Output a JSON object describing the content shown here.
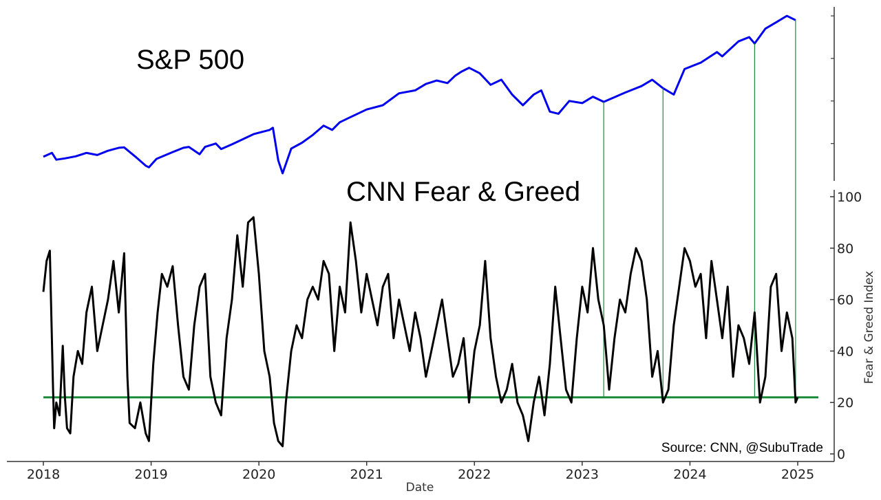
{
  "chart_data": [
    {
      "type": "line",
      "title": "S&P 500",
      "series": [
        {
          "name": "S&P 500",
          "color": "#0000ee",
          "x": [
            2018.0,
            2018.08,
            2018.12,
            2018.2,
            2018.3,
            2018.4,
            2018.5,
            2018.6,
            2018.7,
            2018.75,
            2018.85,
            2018.95,
            2018.98,
            2019.05,
            2019.2,
            2019.3,
            2019.35,
            2019.45,
            2019.5,
            2019.6,
            2019.65,
            2019.75,
            2019.85,
            2019.95,
            2020.1,
            2020.13,
            2020.18,
            2020.22,
            2020.3,
            2020.4,
            2020.5,
            2020.6,
            2020.68,
            2020.75,
            2020.85,
            2021.0,
            2021.15,
            2021.3,
            2021.45,
            2021.55,
            2021.65,
            2021.75,
            2021.82,
            2021.88,
            2021.95,
            2022.05,
            2022.15,
            2022.25,
            2022.35,
            2022.45,
            2022.55,
            2022.62,
            2022.7,
            2022.78,
            2022.88,
            2023.0,
            2023.1,
            2023.2,
            2023.4,
            2023.55,
            2023.65,
            2023.75,
            2023.85,
            2023.95,
            2024.1,
            2024.25,
            2024.3,
            2024.45,
            2024.55,
            2024.6,
            2024.7,
            2024.8,
            2024.9,
            2024.98
          ],
          "values": [
            2690,
            2780,
            2620,
            2650,
            2700,
            2780,
            2730,
            2830,
            2900,
            2910,
            2700,
            2480,
            2440,
            2640,
            2800,
            2900,
            2920,
            2750,
            2920,
            3000,
            2870,
            2980,
            3100,
            3220,
            3320,
            3370,
            2600,
            2300,
            2880,
            3020,
            3200,
            3420,
            3320,
            3500,
            3620,
            3800,
            3900,
            4180,
            4250,
            4400,
            4480,
            4420,
            4590,
            4690,
            4780,
            4650,
            4380,
            4500,
            4150,
            3900,
            4150,
            4250,
            3750,
            3700,
            4000,
            3950,
            4100,
            3980,
            4200,
            4350,
            4500,
            4300,
            4150,
            4750,
            4900,
            5150,
            5050,
            5400,
            5500,
            5350,
            5700,
            5850,
            6000,
            5900
          ]
        }
      ]
    },
    {
      "type": "line",
      "title": "CNN Fear & Greed",
      "xlabel": "Date",
      "ylabel": "Fear & Greed Index",
      "ylim": [
        0,
        100
      ],
      "yticks": [
        "0",
        "20",
        "40",
        "60",
        "80",
        "100"
      ],
      "xticks": [
        "2018",
        "2019",
        "2020",
        "2021",
        "2022",
        "2023",
        "2024",
        "2025"
      ],
      "series": [
        {
          "name": "Fear & Greed Index",
          "color": "#000000",
          "x": [
            2018.0,
            2018.03,
            2018.06,
            2018.09,
            2018.1,
            2018.12,
            2018.15,
            2018.18,
            2018.2,
            2018.22,
            2018.25,
            2018.28,
            2018.32,
            2018.36,
            2018.4,
            2018.45,
            2018.5,
            2018.55,
            2018.6,
            2018.65,
            2018.7,
            2018.75,
            2018.78,
            2018.8,
            2018.85,
            2018.9,
            2018.95,
            2018.98,
            2019.02,
            2019.06,
            2019.1,
            2019.15,
            2019.2,
            2019.25,
            2019.3,
            2019.35,
            2019.4,
            2019.45,
            2019.5,
            2019.55,
            2019.6,
            2019.65,
            2019.7,
            2019.75,
            2019.8,
            2019.85,
            2019.9,
            2019.95,
            2020.0,
            2020.05,
            2020.1,
            2020.14,
            2020.18,
            2020.22,
            2020.25,
            2020.3,
            2020.35,
            2020.4,
            2020.45,
            2020.5,
            2020.55,
            2020.6,
            2020.65,
            2020.7,
            2020.75,
            2020.8,
            2020.85,
            2020.9,
            2020.95,
            2021.0,
            2021.05,
            2021.1,
            2021.15,
            2021.2,
            2021.25,
            2021.3,
            2021.35,
            2021.4,
            2021.45,
            2021.5,
            2021.55,
            2021.6,
            2021.65,
            2021.7,
            2021.75,
            2021.8,
            2021.85,
            2021.9,
            2021.95,
            2022.0,
            2022.05,
            2022.1,
            2022.15,
            2022.2,
            2022.25,
            2022.3,
            2022.35,
            2022.4,
            2022.45,
            2022.5,
            2022.55,
            2022.6,
            2022.65,
            2022.7,
            2022.75,
            2022.8,
            2022.85,
            2022.9,
            2022.95,
            2023.0,
            2023.05,
            2023.1,
            2023.15,
            2023.2,
            2023.25,
            2023.3,
            2023.35,
            2023.4,
            2023.45,
            2023.5,
            2023.55,
            2023.6,
            2023.65,
            2023.7,
            2023.75,
            2023.8,
            2023.85,
            2023.9,
            2023.95,
            2024.0,
            2024.05,
            2024.1,
            2024.15,
            2024.2,
            2024.25,
            2024.3,
            2024.35,
            2024.4,
            2024.45,
            2024.5,
            2024.55,
            2024.6,
            2024.65,
            2024.7,
            2024.75,
            2024.8,
            2024.85,
            2024.9,
            2024.95,
            2024.98,
            2025.0
          ],
          "values": [
            63,
            75,
            79,
            25,
            10,
            20,
            15,
            42,
            22,
            10,
            8,
            30,
            40,
            35,
            55,
            65,
            40,
            50,
            60,
            75,
            55,
            78,
            30,
            12,
            10,
            20,
            8,
            5,
            35,
            55,
            70,
            65,
            73,
            50,
            30,
            25,
            50,
            65,
            70,
            30,
            20,
            15,
            45,
            60,
            85,
            65,
            90,
            92,
            70,
            40,
            30,
            12,
            5,
            3,
            20,
            40,
            50,
            45,
            60,
            65,
            60,
            75,
            70,
            40,
            65,
            55,
            90,
            75,
            55,
            70,
            60,
            50,
            65,
            70,
            45,
            60,
            50,
            40,
            55,
            45,
            30,
            40,
            50,
            60,
            45,
            30,
            35,
            45,
            20,
            40,
            50,
            75,
            45,
            30,
            20,
            25,
            35,
            20,
            15,
            5,
            20,
            30,
            15,
            35,
            65,
            45,
            25,
            20,
            45,
            65,
            55,
            80,
            60,
            50,
            25,
            45,
            60,
            55,
            70,
            80,
            75,
            60,
            30,
            40,
            20,
            25,
            50,
            65,
            80,
            75,
            65,
            70,
            45,
            75,
            60,
            45,
            65,
            30,
            50,
            45,
            35,
            55,
            20,
            30,
            65,
            70,
            40,
            55,
            45,
            20,
            22
          ],
          "annotation_lines_x": [
            2023.2,
            2023.75,
            2024.6,
            2024.98
          ]
        }
      ],
      "threshold": {
        "value": 22,
        "color": "#1a8a3a"
      }
    }
  ],
  "annotations": {
    "source": "Source: CNN, @SubuTrade"
  },
  "colors": {
    "sp500": "#0000ee",
    "fear_greed": "#000000",
    "threshold": "#1a8a3a"
  }
}
